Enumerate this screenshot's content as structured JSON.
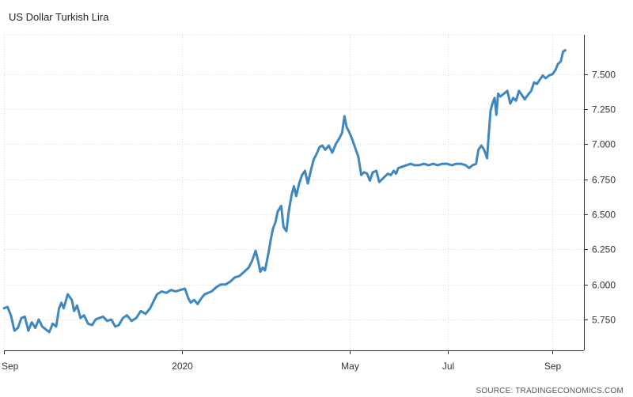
{
  "chart_data": {
    "type": "line",
    "title": "US Dollar Turkish Lira",
    "source": "SOURCE: TRADINGECONOMICS.COM",
    "xlabel": "",
    "ylabel": "",
    "ylim": [
      5.53,
      7.78
    ],
    "yticks": [
      "5.750",
      "6.000",
      "6.250",
      "6.500",
      "6.750",
      "7.000",
      "7.250",
      "7.500"
    ],
    "xticks": [
      {
        "label": "Sep",
        "pos": 0.0
      },
      {
        "label": "2020",
        "pos": 0.3073
      },
      {
        "label": "May",
        "pos": 0.5964
      },
      {
        "label": "Jul",
        "pos": 0.7648
      },
      {
        "label": "Sep",
        "pos": 0.9458
      }
    ],
    "grid": true,
    "color": "#3f87bf",
    "series": [
      {
        "points": [
          [
            0.0,
            5.83
          ],
          [
            0.006,
            5.84
          ],
          [
            0.012,
            5.78
          ],
          [
            0.018,
            5.67
          ],
          [
            0.024,
            5.69
          ],
          [
            0.03,
            5.76
          ],
          [
            0.036,
            5.77
          ],
          [
            0.042,
            5.67
          ],
          [
            0.048,
            5.73
          ],
          [
            0.054,
            5.69
          ],
          [
            0.06,
            5.75
          ],
          [
            0.066,
            5.7
          ],
          [
            0.072,
            5.68
          ],
          [
            0.078,
            5.66
          ],
          [
            0.084,
            5.72
          ],
          [
            0.09,
            5.7
          ],
          [
            0.095,
            5.83
          ],
          [
            0.099,
            5.87
          ],
          [
            0.103,
            5.83
          ],
          [
            0.11,
            5.93
          ],
          [
            0.117,
            5.89
          ],
          [
            0.121,
            5.81
          ],
          [
            0.126,
            5.85
          ],
          [
            0.132,
            5.76
          ],
          [
            0.138,
            5.78
          ],
          [
            0.145,
            5.72
          ],
          [
            0.152,
            5.71
          ],
          [
            0.158,
            5.75
          ],
          [
            0.164,
            5.76
          ],
          [
            0.171,
            5.77
          ],
          [
            0.178,
            5.74
          ],
          [
            0.185,
            5.75
          ],
          [
            0.192,
            5.7
          ],
          [
            0.198,
            5.71
          ],
          [
            0.205,
            5.76
          ],
          [
            0.212,
            5.78
          ],
          [
            0.22,
            5.74
          ],
          [
            0.228,
            5.76
          ],
          [
            0.236,
            5.81
          ],
          [
            0.244,
            5.79
          ],
          [
            0.252,
            5.83
          ],
          [
            0.258,
            5.88
          ],
          [
            0.264,
            5.93
          ],
          [
            0.272,
            5.95
          ],
          [
            0.28,
            5.94
          ],
          [
            0.288,
            5.96
          ],
          [
            0.296,
            5.95
          ],
          [
            0.304,
            5.96
          ],
          [
            0.312,
            5.97
          ],
          [
            0.318,
            5.9
          ],
          [
            0.322,
            5.87
          ],
          [
            0.328,
            5.89
          ],
          [
            0.334,
            5.86
          ],
          [
            0.34,
            5.9
          ],
          [
            0.346,
            5.93
          ],
          [
            0.352,
            5.94
          ],
          [
            0.358,
            5.95
          ],
          [
            0.366,
            5.98
          ],
          [
            0.374,
            6.0
          ],
          [
            0.382,
            6.0
          ],
          [
            0.39,
            6.02
          ],
          [
            0.398,
            6.05
          ],
          [
            0.406,
            6.06
          ],
          [
            0.414,
            6.09
          ],
          [
            0.422,
            6.12
          ],
          [
            0.428,
            6.17
          ],
          [
            0.434,
            6.24
          ],
          [
            0.438,
            6.17
          ],
          [
            0.442,
            6.09
          ],
          [
            0.446,
            6.12
          ],
          [
            0.45,
            6.1
          ],
          [
            0.456,
            6.22
          ],
          [
            0.46,
            6.32
          ],
          [
            0.464,
            6.4
          ],
          [
            0.468,
            6.44
          ],
          [
            0.472,
            6.52
          ],
          [
            0.478,
            6.56
          ],
          [
            0.482,
            6.41
          ],
          [
            0.487,
            6.38
          ],
          [
            0.491,
            6.52
          ],
          [
            0.496,
            6.64
          ],
          [
            0.5,
            6.7
          ],
          [
            0.504,
            6.63
          ],
          [
            0.509,
            6.72
          ],
          [
            0.514,
            6.78
          ],
          [
            0.519,
            6.81
          ],
          [
            0.524,
            6.72
          ],
          [
            0.529,
            6.81
          ],
          [
            0.534,
            6.89
          ],
          [
            0.539,
            6.93
          ],
          [
            0.544,
            6.98
          ],
          [
            0.549,
            6.99
          ],
          [
            0.554,
            6.96
          ],
          [
            0.56,
            6.99
          ],
          [
            0.566,
            6.94
          ],
          [
            0.572,
            7.0
          ],
          [
            0.578,
            7.04
          ],
          [
            0.583,
            7.08
          ],
          [
            0.587,
            7.2
          ],
          [
            0.591,
            7.12
          ],
          [
            0.595,
            7.09
          ],
          [
            0.6,
            7.04
          ],
          [
            0.605,
            6.98
          ],
          [
            0.611,
            6.91
          ],
          [
            0.616,
            6.78
          ],
          [
            0.621,
            6.8
          ],
          [
            0.626,
            6.79
          ],
          [
            0.631,
            6.74
          ],
          [
            0.636,
            6.8
          ],
          [
            0.642,
            6.81
          ],
          [
            0.647,
            6.73
          ],
          [
            0.652,
            6.75
          ],
          [
            0.657,
            6.77
          ],
          [
            0.662,
            6.79
          ],
          [
            0.667,
            6.78
          ],
          [
            0.672,
            6.81
          ],
          [
            0.676,
            6.79
          ],
          [
            0.68,
            6.83
          ],
          [
            0.687,
            6.84
          ],
          [
            0.694,
            6.85
          ],
          [
            0.701,
            6.86
          ],
          [
            0.708,
            6.85
          ],
          [
            0.716,
            6.85
          ],
          [
            0.724,
            6.86
          ],
          [
            0.732,
            6.85
          ],
          [
            0.74,
            6.86
          ],
          [
            0.748,
            6.85
          ],
          [
            0.756,
            6.86
          ],
          [
            0.764,
            6.86
          ],
          [
            0.772,
            6.85
          ],
          [
            0.78,
            6.86
          ],
          [
            0.788,
            6.86
          ],
          [
            0.796,
            6.85
          ],
          [
            0.802,
            6.83
          ],
          [
            0.808,
            6.85
          ],
          [
            0.814,
            6.86
          ],
          [
            0.818,
            6.96
          ],
          [
            0.823,
            6.99
          ],
          [
            0.828,
            6.96
          ],
          [
            0.833,
            6.9
          ],
          [
            0.836,
            7.08
          ],
          [
            0.839,
            7.24
          ],
          [
            0.843,
            7.3
          ],
          [
            0.846,
            7.33
          ],
          [
            0.849,
            7.21
          ],
          [
            0.852,
            7.36
          ],
          [
            0.856,
            7.34
          ],
          [
            0.862,
            7.36
          ],
          [
            0.868,
            7.38
          ],
          [
            0.873,
            7.29
          ],
          [
            0.878,
            7.33
          ],
          [
            0.883,
            7.31
          ],
          [
            0.888,
            7.38
          ],
          [
            0.893,
            7.35
          ],
          [
            0.898,
            7.32
          ],
          [
            0.903,
            7.35
          ],
          [
            0.909,
            7.38
          ],
          [
            0.914,
            7.44
          ],
          [
            0.919,
            7.43
          ],
          [
            0.924,
            7.46
          ],
          [
            0.929,
            7.49
          ],
          [
            0.934,
            7.47
          ],
          [
            0.94,
            7.49
          ],
          [
            0.946,
            7.5
          ],
          [
            0.951,
            7.53
          ],
          [
            0.955,
            7.57
          ],
          [
            0.96,
            7.59
          ],
          [
            0.964,
            7.66
          ],
          [
            0.968,
            7.67
          ]
        ]
      }
    ]
  }
}
